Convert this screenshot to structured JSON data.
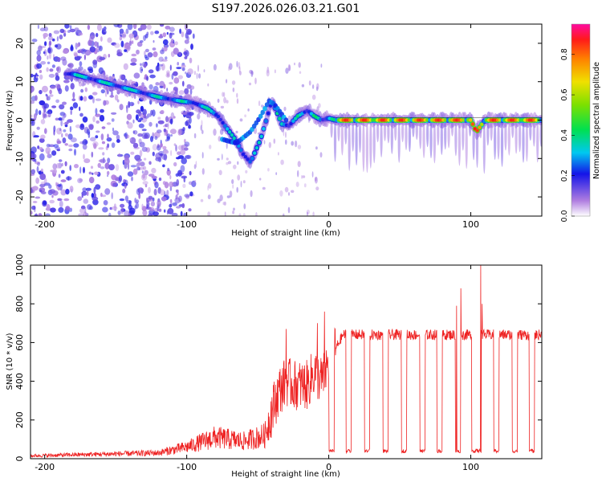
{
  "title": "S197.2026.026.03.21.G01",
  "chart_data": [
    {
      "type": "heatmap",
      "name": "spectrogram",
      "xlabel": "Height of straight line (km)",
      "ylabel": "Frequency (Hz)",
      "xlim": [
        -210,
        150
      ],
      "ylim": [
        -25,
        25
      ],
      "xticks": [
        -200,
        -100,
        0,
        100
      ],
      "yticks": [
        -20,
        -10,
        0,
        10,
        20
      ],
      "colorbar": {
        "label": "Normalized spectral amplitude",
        "range": [
          0.0,
          0.95
        ],
        "ticks": [
          0.0,
          0.2,
          0.4,
          0.6,
          0.8
        ],
        "tick_labels": [
          "0.0",
          "0.2",
          "0.4",
          "0.6",
          "0.8"
        ]
      },
      "dominant_frequency_track": {
        "x": [
          -180,
          -165,
          -150,
          -135,
          -120,
          -105,
          -95,
          -85,
          -78,
          -72,
          -66,
          -60,
          -55,
          -48,
          -40,
          -33,
          -28,
          -22,
          -15,
          -10,
          -5,
          0,
          5,
          20,
          40,
          60,
          80,
          100,
          104,
          110,
          130,
          150
        ],
        "y": [
          12,
          10.5,
          9,
          7.5,
          6,
          5,
          4.5,
          3,
          1,
          -2,
          -5,
          -9,
          -11,
          -5,
          5,
          -1,
          -1.5,
          1,
          2.5,
          1,
          0,
          0.5,
          0,
          0,
          0,
          0,
          0,
          0,
          -3,
          0,
          0,
          0
        ]
      },
      "secondary_track": {
        "x": [
          -75,
          -65,
          -55,
          -48,
          -42,
          -38,
          -34,
          -30
        ],
        "y": [
          -5,
          -6,
          -3,
          1,
          5,
          4,
          2,
          0
        ]
      }
    },
    {
      "type": "line",
      "name": "snr",
      "xlabel": "Height of straight line (km)",
      "ylabel": "SNR (10 * v/v)",
      "xlim": [
        -210,
        150
      ],
      "ylim": [
        0,
        1000
      ],
      "xticks": [
        -200,
        -100,
        0,
        100
      ],
      "yticks": [
        0,
        200,
        400,
        600,
        800,
        1000
      ],
      "series_color": "#ee2222",
      "baseline_envelope": {
        "x": [
          -210,
          -150,
          -120,
          -100,
          -80,
          -60,
          -45,
          -40,
          -35,
          -30,
          -25,
          -15,
          -10,
          -5,
          0,
          10,
          150
        ],
        "y": [
          15,
          25,
          30,
          60,
          110,
          90,
          120,
          250,
          350,
          400,
          380,
          380,
          450,
          400,
          500,
          640,
          640
        ]
      },
      "dropout_centers": [
        2,
        14,
        27,
        40,
        53,
        66,
        78,
        91,
        104,
        118,
        131,
        143
      ],
      "dropout_level": 40,
      "spikes": [
        {
          "x": -30,
          "y": 670
        },
        {
          "x": -8,
          "y": 700
        },
        {
          "x": -3,
          "y": 760
        },
        {
          "x": 90,
          "y": 790
        },
        {
          "x": 93,
          "y": 880
        },
        {
          "x": 107,
          "y": 1000
        },
        {
          "x": 108,
          "y": 800
        }
      ]
    }
  ]
}
